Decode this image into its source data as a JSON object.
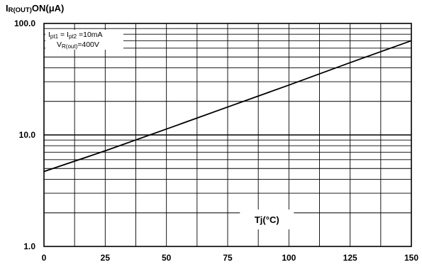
{
  "chart_data": {
    "type": "line",
    "title": "",
    "ylabel": "IR(OUT)ON(μA)",
    "ylabel_parts": {
      "main": "I",
      "sub": "R(OUT)",
      "tail": "ON(μA)"
    },
    "xlabel": "Tj(°C)",
    "y_scale": "log",
    "ylim": [
      1.0,
      100.0
    ],
    "xlim": [
      0,
      150
    ],
    "x_ticks": [
      0,
      25,
      50,
      75,
      100,
      125,
      150
    ],
    "y_ticks": [
      1.0,
      10.0,
      100.0
    ],
    "x_tick_labels": [
      "0",
      "25",
      "50",
      "75",
      "100",
      "125",
      "150"
    ],
    "y_tick_labels": [
      "1.0",
      "10.0",
      "100.0"
    ],
    "grid": true,
    "series": [
      {
        "x": [
          0,
          25,
          50,
          75,
          100,
          125,
          150
        ],
        "y": [
          4.7,
          7.2,
          11.3,
          17.8,
          28.0,
          44.5,
          70.0
        ]
      }
    ],
    "annotations": {
      "line1": {
        "a": "I",
        "a_sub": "pt1",
        "b": " = I",
        "b_sub": "pt2",
        "c": " =10mA"
      },
      "line2": {
        "a": "V",
        "a_sub": "R(out)",
        "c": "=400V"
      }
    }
  }
}
